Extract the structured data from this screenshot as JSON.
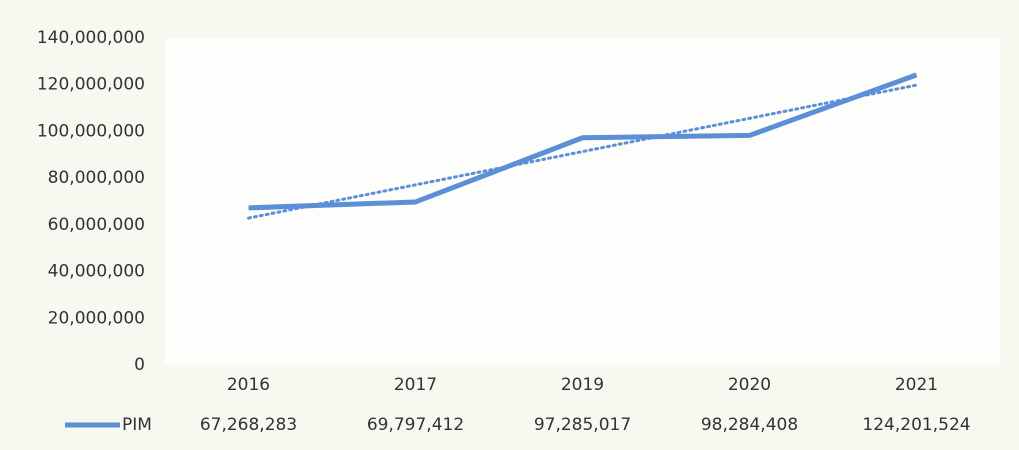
{
  "chart_data": {
    "type": "line",
    "categories": [
      "2016",
      "2017",
      "2019",
      "2020",
      "2021"
    ],
    "series": [
      {
        "name": "PIM",
        "color": "#5b8fd6",
        "values": [
          67268283,
          69797412,
          97285017,
          98284408,
          124201524
        ],
        "value_labels": [
          "67,268,283",
          "69,797,412",
          "97,285,017",
          "98,284,408",
          "124,201,524"
        ]
      }
    ],
    "ylim": [
      0,
      140000000
    ],
    "yticks": [
      0,
      {
        "value": 20000000,
        "label": "20,000,000"
      },
      {
        "value": 40000000,
        "label": "40,000,000"
      },
      {
        "value": 60000000,
        "label": "60,000,000"
      },
      {
        "value": 80000000,
        "label": "80,000,000"
      },
      {
        "value": 100000000,
        "label": "100,000,000"
      },
      {
        "value": 120000000,
        "label": "120,000,000"
      },
      {
        "value": 140000000,
        "label": "140,000,000"
      }
    ],
    "grid": false,
    "trendline": "linear",
    "data_table": true
  }
}
